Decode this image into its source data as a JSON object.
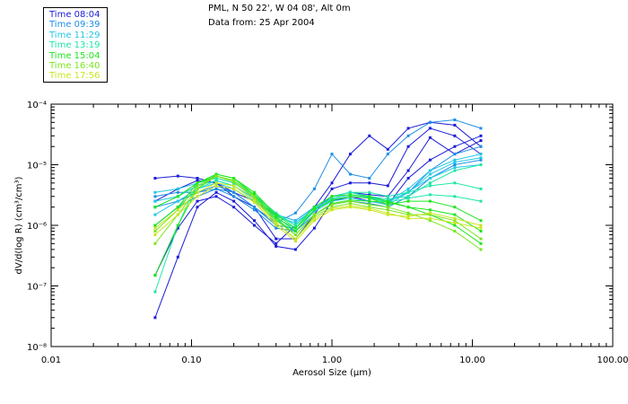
{
  "colors": [
    "#1c1cd8",
    "#1e8fe6",
    "#22c8e6",
    "#1ee6a8",
    "#1ee61e",
    "#7ae61e",
    "#c8e61e"
  ],
  "chart_data": {
    "type": "line",
    "title": "PML, N 50 22', W 04 08', Alt 0m",
    "subtitle": "Data from: 25 Apr 2004",
    "xlabel": "Aerosol Size (μm)",
    "ylabel": "dV/d(log R) (cm³/cm³)",
    "x_scale": "log",
    "y_scale": "log",
    "xlim": [
      0.01,
      100
    ],
    "ylim": [
      1e-08,
      0.0001
    ],
    "x_ticks": [
      "0.01",
      "0.10",
      "1.00",
      "10.00",
      "100.00"
    ],
    "y_ticks": [
      "10⁻⁸",
      "10⁻⁷",
      "10⁻⁶",
      "10⁻⁵",
      "10⁻⁴"
    ],
    "x": [
      0.055,
      0.08,
      0.11,
      0.15,
      0.2,
      0.28,
      0.4,
      0.55,
      0.75,
      1.0,
      1.35,
      1.85,
      2.5,
      3.5,
      5.0,
      7.5,
      11.5
    ],
    "legend": [
      {
        "label": "Time 08:04"
      },
      {
        "label": "Time 09:39"
      },
      {
        "label": "Time 11:29"
      },
      {
        "label": "Time 13:19"
      },
      {
        "label": "Time 15:04"
      },
      {
        "label": "Time 16:40"
      },
      {
        "label": "Time 17:56"
      }
    ],
    "series": [
      {
        "name": "08:04 a",
        "group": 0,
        "values": [
          3e-08,
          3e-07,
          2e-06,
          3.5e-06,
          2.5e-06,
          1.2e-06,
          4.5e-07,
          4e-07,
          9e-07,
          2.5e-06,
          3e-06,
          2.5e-06,
          2.2e-06,
          6e-06,
          1.2e-05,
          2e-05,
          3e-05
        ]
      },
      {
        "name": "08:04 b",
        "group": 0,
        "values": [
          1.5e-07,
          9e-07,
          2.5e-06,
          3e-06,
          2e-06,
          1e-06,
          5e-07,
          1e-06,
          2e-06,
          5e-06,
          1.5e-05,
          3e-05,
          1.8e-05,
          4e-05,
          5e-05,
          4.5e-05,
          2e-05
        ]
      },
      {
        "name": "08:04 c",
        "group": 0,
        "values": [
          2.5e-06,
          4e-06,
          5.5e-06,
          5e-06,
          3.5e-06,
          2.5e-06,
          1.5e-06,
          1.2e-06,
          2e-06,
          3e-06,
          3.5e-06,
          3.2e-06,
          3e-06,
          8e-06,
          2.8e-05,
          1.5e-05,
          2.5e-05
        ]
      },
      {
        "name": "08:04 d",
        "group": 0,
        "values": [
          6e-06,
          6.5e-06,
          6e-06,
          5e-06,
          3e-06,
          2e-06,
          6e-07,
          6e-07,
          1.5e-06,
          4e-06,
          5e-06,
          5e-06,
          4.5e-06,
          2e-05,
          4e-05,
          3e-05,
          1.5e-05
        ]
      },
      {
        "name": "09:39 a",
        "group": 1,
        "values": [
          3e-06,
          3.5e-06,
          3.5e-06,
          4e-06,
          3.5e-06,
          2e-06,
          1.1e-06,
          1.6e-06,
          4e-06,
          1.5e-05,
          7e-06,
          6e-06,
          1.5e-05,
          3e-05,
          5e-05,
          5.5e-05,
          4e-05
        ]
      },
      {
        "name": "09:39 b",
        "group": 1,
        "values": [
          2e-06,
          2.5e-06,
          3.5e-06,
          4.5e-06,
          3.5e-06,
          2e-06,
          1e-06,
          9e-07,
          1.8e-06,
          3e-06,
          3.5e-06,
          3e-06,
          2.5e-06,
          3.5e-06,
          8e-06,
          1.5e-05,
          2e-05
        ]
      },
      {
        "name": "09:39 c",
        "group": 1,
        "values": [
          1e-06,
          2e-06,
          3e-06,
          4e-06,
          3e-06,
          1.8e-06,
          9e-07,
          8e-07,
          1.5e-06,
          2.2e-06,
          2.5e-06,
          2.3e-06,
          2e-06,
          3e-06,
          6e-06,
          1e-05,
          1.2e-05
        ]
      },
      {
        "name": "11:29 a",
        "group": 2,
        "values": [
          3.5e-06,
          4e-06,
          5e-06,
          6e-06,
          5e-06,
          3e-06,
          1.5e-06,
          1.2e-06,
          2e-06,
          3e-06,
          3.5e-06,
          3e-06,
          2.5e-06,
          4e-06,
          8e-06,
          1.2e-05,
          1.5e-05
        ]
      },
      {
        "name": "11:29 b",
        "group": 2,
        "values": [
          1.5e-06,
          2.5e-06,
          4e-06,
          5e-06,
          4e-06,
          2.5e-06,
          1.2e-06,
          8e-07,
          1.7e-06,
          2.5e-06,
          2.8e-06,
          2.5e-06,
          2.2e-06,
          3.5e-06,
          7e-06,
          1.1e-05,
          1.3e-05
        ]
      },
      {
        "name": "11:29 c",
        "group": 2,
        "values": [
          2.5e-06,
          3e-06,
          4.5e-06,
          5.5e-06,
          4.5e-06,
          2.8e-06,
          1.4e-06,
          1.1e-06,
          1.9e-06,
          2.8e-06,
          3.2e-06,
          2.9e-06,
          2.4e-06,
          3.6e-06,
          6e-06,
          9e-06,
          1e-05
        ]
      },
      {
        "name": "13:19 a",
        "group": 3,
        "values": [
          8e-08,
          1e-06,
          5e-06,
          6e-06,
          5e-06,
          3e-06,
          1.5e-06,
          1e-06,
          2e-06,
          3e-06,
          3.5e-06,
          3.5e-06,
          3e-06,
          3.5e-06,
          4.5e-06,
          5e-06,
          4e-06
        ]
      },
      {
        "name": "13:19 b",
        "group": 3,
        "values": [
          2e-06,
          3e-06,
          5e-06,
          6.5e-06,
          5.5e-06,
          3.2e-06,
          1.6e-06,
          1e-06,
          2e-06,
          3e-06,
          3.5e-06,
          3e-06,
          2.7e-06,
          3e-06,
          5e-06,
          8e-06,
          1e-05
        ]
      },
      {
        "name": "13:19 c",
        "group": 3,
        "values": [
          1e-06,
          2e-06,
          4e-06,
          5.5e-06,
          4.5e-06,
          2.6e-06,
          1.3e-06,
          9e-07,
          1.8e-06,
          2.7e-06,
          3e-06,
          2.8e-06,
          2.4e-06,
          2.8e-06,
          3.2e-06,
          3e-06,
          2.5e-06
        ]
      },
      {
        "name": "15:04 a",
        "group": 4,
        "values": [
          1.5e-07,
          1e-06,
          4e-06,
          7e-06,
          6e-06,
          3.5e-06,
          1.5e-06,
          9e-07,
          2e-06,
          3e-06,
          3.2e-06,
          3e-06,
          2.5e-06,
          2e-06,
          1.5e-06,
          1e-06,
          5e-07
        ]
      },
      {
        "name": "15:04 b",
        "group": 4,
        "values": [
          1e-06,
          2e-06,
          5e-06,
          7e-06,
          6e-06,
          3.2e-06,
          1.4e-06,
          8e-07,
          1.8e-06,
          2.6e-06,
          3e-06,
          2.8e-06,
          2.2e-06,
          2.5e-06,
          2.5e-06,
          2e-06,
          1.2e-06
        ]
      },
      {
        "name": "15:04 c",
        "group": 4,
        "values": [
          2e-06,
          3e-06,
          5e-06,
          6.5e-06,
          5.5e-06,
          3e-06,
          1.3e-06,
          7e-07,
          1.5e-06,
          2.3e-06,
          2.6e-06,
          2.5e-06,
          2.4e-06,
          2e-06,
          1.8e-06,
          1.5e-06,
          8e-07
        ]
      },
      {
        "name": "16:40 a",
        "group": 5,
        "values": [
          5e-07,
          1.5e-06,
          4e-06,
          6.5e-06,
          5.5e-06,
          3e-06,
          1.2e-06,
          7e-07,
          1.5e-06,
          2.2e-06,
          2.5e-06,
          2.2e-06,
          2e-06,
          1.6e-06,
          1.2e-06,
          8e-07,
          4e-07
        ]
      },
      {
        "name": "16:40 b",
        "group": 5,
        "values": [
          8e-07,
          1.8e-06,
          4.5e-06,
          6.5e-06,
          5.2e-06,
          2.8e-06,
          1.1e-06,
          6e-07,
          1.4e-06,
          2e-06,
          2.3e-06,
          2e-06,
          1.8e-06,
          1.5e-06,
          1.5e-06,
          1.2e-06,
          6e-07
        ]
      },
      {
        "name": "17:56 a",
        "group": 6,
        "values": [
          9e-07,
          1.8e-06,
          3.5e-06,
          5e-06,
          4.5e-06,
          2.6e-06,
          1.1e-06,
          6e-07,
          1.3e-06,
          1.9e-06,
          2.1e-06,
          1.9e-06,
          1.6e-06,
          1.3e-06,
          1.3e-06,
          1.1e-06,
          9e-07
        ]
      },
      {
        "name": "17:56 b",
        "group": 6,
        "values": [
          7e-07,
          1.5e-06,
          3e-06,
          4.5e-06,
          4e-06,
          2.4e-06,
          1e-06,
          5.5e-07,
          1.2e-06,
          1.8e-06,
          2e-06,
          1.8e-06,
          1.5e-06,
          1.4e-06,
          1.6e-06,
          1.3e-06,
          1e-06
        ]
      }
    ]
  }
}
